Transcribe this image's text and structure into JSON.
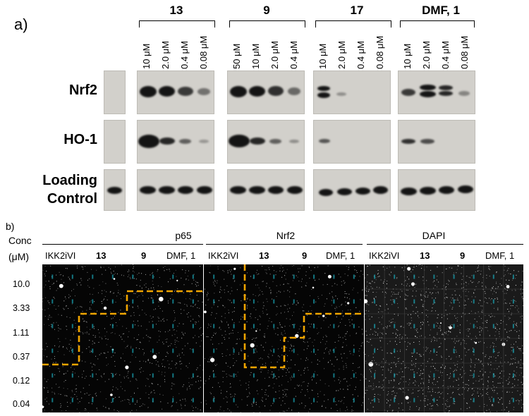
{
  "panel_a": {
    "label": "a)",
    "groups": [
      {
        "title": "13",
        "concs": [
          "10 μM",
          "2.0 μM",
          "0.4 μM",
          "0.08 μM"
        ]
      },
      {
        "title": "9",
        "concs": [
          "50 μM",
          "10 μM",
          "2.0 μM",
          "0.4 μM"
        ]
      },
      {
        "title": "17",
        "concs": [
          "10 μM",
          "2.0 μM",
          "0.4 μM",
          "0.08 μM"
        ]
      },
      {
        "title": "DMF, 1",
        "concs": [
          "10 μM",
          "2.0 μM",
          "0.4 μM",
          "0.08 μM"
        ]
      }
    ],
    "rows": {
      "nrf2": "Nrf2",
      "ho1": "HO-1",
      "loading_1": "Loading",
      "loading_2": "Control"
    }
  },
  "panel_b": {
    "label": "b)",
    "conc_title": "Conc",
    "conc_unit": "(μM)",
    "concentrations": [
      "10.0",
      "3.33",
      "1.11",
      "0.37",
      "0.12",
      "0.04"
    ],
    "channels": [
      "p65",
      "Nrf2",
      "DAPI"
    ],
    "compounds": [
      "IKK2iVI",
      "13",
      "9",
      "DMF, 1"
    ],
    "colors": {
      "dashed_line": "#f0a500",
      "well_label": "#1aa6b7"
    }
  }
}
